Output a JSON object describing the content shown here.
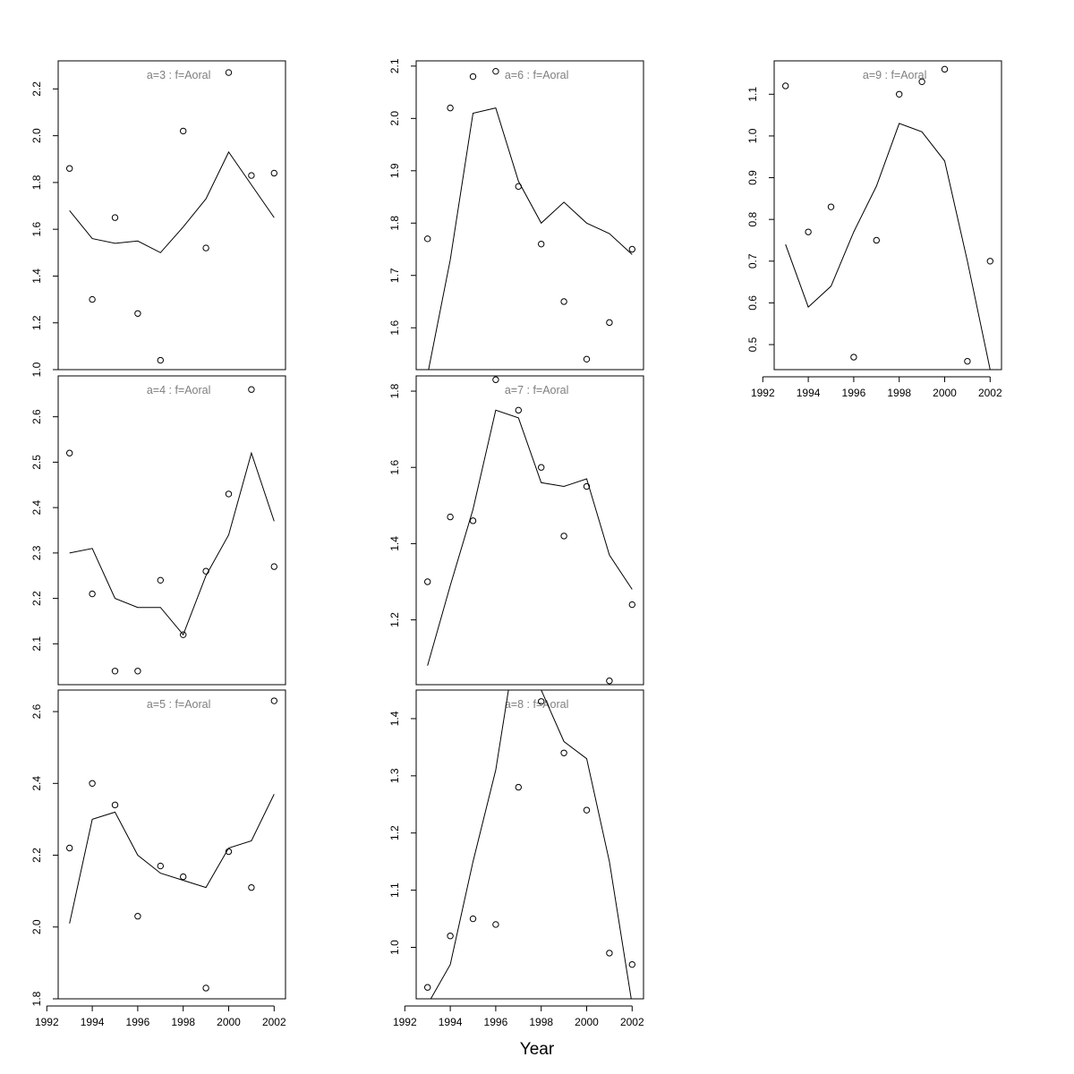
{
  "figure": {
    "xlabel": "Year",
    "x_ticks": [
      "1992",
      "1994",
      "1996",
      "1998",
      "2000",
      "2002"
    ],
    "colors": {
      "frame": "#000000",
      "panel_title": "#7f7f7f",
      "points": "#000000",
      "line": "#000000"
    }
  },
  "chart_data": [
    {
      "type": "scatter+line",
      "title": "a=3  :  f=Aoral",
      "x": [
        1993,
        1994,
        1995,
        1996,
        1997,
        1998,
        1999,
        2000,
        2001,
        2002
      ],
      "points": [
        1.86,
        1.3,
        1.65,
        1.24,
        1.04,
        2.02,
        1.52,
        2.27,
        1.83,
        1.84
      ],
      "fitted": [
        1.68,
        1.56,
        1.54,
        1.55,
        1.5,
        1.61,
        1.73,
        1.93,
        1.79,
        1.65
      ],
      "xlim": [
        1992.5,
        2002.5
      ],
      "ylim": [
        1.0,
        2.32
      ],
      "yticks": [
        "1.0",
        "1.2",
        "1.4",
        "1.6",
        "1.8",
        "2.0",
        "2.2"
      ],
      "show_x_axis": false
    },
    {
      "type": "scatter+line",
      "title": "a=4  :  f=Aoral",
      "x": [
        1993,
        1994,
        1995,
        1996,
        1997,
        1998,
        1999,
        2000,
        2001,
        2002
      ],
      "points": [
        2.52,
        2.21,
        2.04,
        2.04,
        2.24,
        2.12,
        2.26,
        2.43,
        2.66,
        2.27
      ],
      "fitted": [
        2.3,
        2.31,
        2.2,
        2.18,
        2.18,
        2.12,
        2.25,
        2.34,
        2.52,
        2.37
      ],
      "xlim": [
        1992.5,
        2002.5
      ],
      "ylim": [
        2.01,
        2.69
      ],
      "yticks": [
        "2.1",
        "2.2",
        "2.3",
        "2.4",
        "2.5",
        "2.6"
      ],
      "show_x_axis": false
    },
    {
      "type": "scatter+line",
      "title": "a=5  :  f=Aoral",
      "x": [
        1993,
        1994,
        1995,
        1996,
        1997,
        1998,
        1999,
        2000,
        2001,
        2002
      ],
      "points": [
        2.22,
        2.4,
        2.34,
        2.03,
        2.17,
        2.14,
        1.83,
        2.21,
        2.11,
        2.63
      ],
      "fitted": [
        2.01,
        2.3,
        2.32,
        2.2,
        2.15,
        2.13,
        2.11,
        2.22,
        2.24,
        2.37
      ],
      "xlim": [
        1992.5,
        2002.5
      ],
      "ylim": [
        1.8,
        2.66
      ],
      "yticks": [
        "1.8",
        "2.0",
        "2.2",
        "2.4",
        "2.6"
      ],
      "show_x_axis": true
    },
    {
      "type": "scatter+line",
      "title": "a=6  :  f=Aoral",
      "x": [
        1993,
        1994,
        1995,
        1996,
        1997,
        1998,
        1999,
        2000,
        2001,
        2002
      ],
      "points": [
        1.77,
        2.02,
        2.08,
        2.09,
        1.87,
        1.76,
        1.65,
        1.54,
        1.61,
        1.75
      ],
      "fitted": [
        1.51,
        1.73,
        2.01,
        2.02,
        1.88,
        1.8,
        1.84,
        1.8,
        1.78,
        1.74
      ],
      "xlim": [
        1992.5,
        2002.5
      ],
      "ylim": [
        1.52,
        2.11
      ],
      "yticks": [
        "1.6",
        "1.7",
        "1.8",
        "1.9",
        "2.0",
        "2.1"
      ],
      "show_x_axis": false
    },
    {
      "type": "scatter+line",
      "title": "a=7  :  f=Aoral",
      "x": [
        1993,
        1994,
        1995,
        1996,
        1997,
        1998,
        1999,
        2000,
        2001,
        2002
      ],
      "points": [
        1.3,
        1.47,
        1.46,
        1.83,
        1.75,
        1.6,
        1.42,
        1.55,
        1.04,
        1.24
      ],
      "fitted": [
        1.08,
        1.29,
        1.49,
        1.75,
        1.73,
        1.56,
        1.55,
        1.57,
        1.37,
        1.28
      ],
      "xlim": [
        1992.5,
        2002.5
      ],
      "ylim": [
        1.03,
        1.84
      ],
      "yticks": [
        "1.2",
        "1.4",
        "1.6",
        "1.8"
      ],
      "show_x_axis": false
    },
    {
      "type": "scatter+line",
      "title": "a=8  :  f=Aoral",
      "x": [
        1993,
        1994,
        1995,
        1996,
        1997,
        1998,
        1999,
        2000,
        2001,
        2002
      ],
      "points": [
        0.93,
        1.02,
        1.05,
        1.04,
        1.28,
        1.43,
        1.34,
        1.24,
        0.99,
        0.97
      ],
      "fitted": [
        0.9,
        0.97,
        1.15,
        1.31,
        1.56,
        1.45,
        1.36,
        1.33,
        1.15,
        0.9
      ],
      "xlim": [
        1992.5,
        2002.5
      ],
      "ylim": [
        0.91,
        1.45
      ],
      "yticks": [
        "1.0",
        "1.1",
        "1.2",
        "1.3",
        "1.4"
      ],
      "show_x_axis": true
    },
    {
      "type": "scatter+line",
      "title": "a=9  :  f=Aoral",
      "x": [
        1993,
        1994,
        1995,
        1996,
        1997,
        1998,
        1999,
        2000,
        2001,
        2002
      ],
      "points": [
        1.12,
        0.77,
        0.83,
        0.47,
        0.75,
        1.1,
        1.13,
        1.16,
        0.46,
        0.7
      ],
      "fitted": [
        0.74,
        0.59,
        0.64,
        0.77,
        0.88,
        1.03,
        1.01,
        0.94,
        0.7,
        0.44
      ],
      "xlim": [
        1992.5,
        2002.5
      ],
      "ylim": [
        0.44,
        1.18
      ],
      "yticks": [
        "0.5",
        "0.6",
        "0.7",
        "0.8",
        "0.9",
        "1.0",
        "1.1"
      ],
      "show_x_axis": true
    }
  ]
}
